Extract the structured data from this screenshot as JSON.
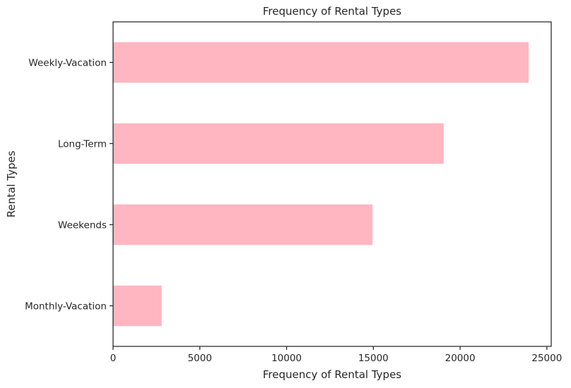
{
  "chart_data": {
    "type": "bar",
    "orientation": "horizontal",
    "title": "Frequency of Rental Types",
    "xlabel": "Frequency of Rental Types",
    "ylabel": "Rental Types",
    "categories": [
      "Weekly-Vacation",
      "Long-Term",
      "Weekends",
      "Monthly-Vacation"
    ],
    "values": [
      23950,
      19050,
      14950,
      2800
    ],
    "xlim": [
      0,
      25250
    ],
    "xticks": [
      0,
      5000,
      10000,
      15000,
      20000,
      25000
    ],
    "xtick_labels": [
      "0",
      "5000",
      "10000",
      "15000",
      "20000",
      "25000"
    ],
    "bar_color": "#ffb6c1",
    "grid": false,
    "legend": "none"
  }
}
